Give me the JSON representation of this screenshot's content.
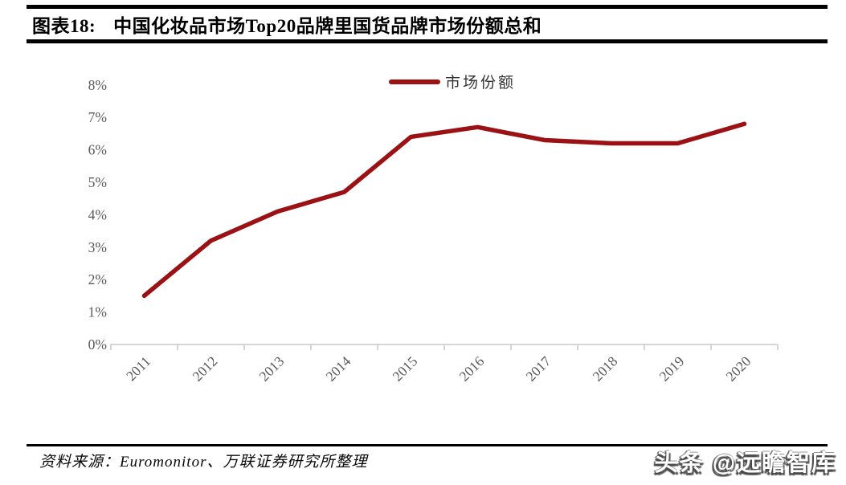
{
  "header": {
    "title_prefix": "图表18:",
    "title": "中国化妆品市场Top20品牌里国货品牌市场份额总和"
  },
  "chart_data": {
    "type": "line",
    "categories": [
      "2011",
      "2012",
      "2013",
      "2014",
      "2015",
      "2016",
      "2017",
      "2018",
      "2019",
      "2020"
    ],
    "series": [
      {
        "name": "市场份额",
        "values": [
          1.5,
          3.2,
          4.1,
          4.7,
          6.4,
          6.7,
          6.3,
          6.2,
          6.2,
          6.8
        ]
      }
    ],
    "ylim": [
      0,
      8
    ],
    "ytick_step": 1,
    "ytick_suffix": "%",
    "xlabel": "",
    "ylabel": "",
    "grid": false,
    "legend_position": "top-center",
    "xtick_rotation": -45,
    "colors": {
      "line": "#9B1114",
      "axis": "#C8C8C8",
      "tick_label": "#595959",
      "legend_label": "#333333"
    }
  },
  "footer": {
    "source": "资料来源：Euromonitor、万联证券研究所整理",
    "watermark": "头条 @远瞻智库"
  }
}
